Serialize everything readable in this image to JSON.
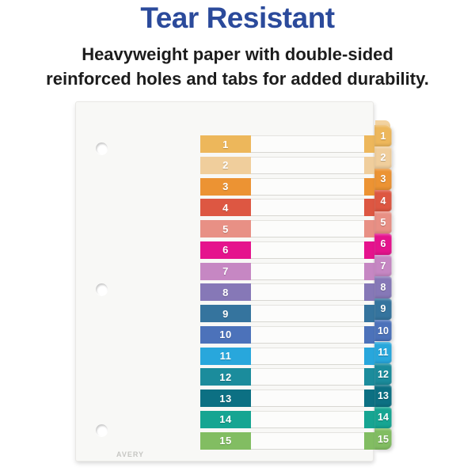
{
  "header": {
    "title": "Tear Resistant",
    "subtitle_line1": "Heavyweight paper with double-sided",
    "subtitle_line2": "reinforced holes and tabs for added durability.",
    "title_color": "#2B4A9B"
  },
  "product": {
    "brand": "AVERY",
    "tabs": [
      {
        "number": "1",
        "color": "#EDB75B"
      },
      {
        "number": "2",
        "color": "#F0CE9C"
      },
      {
        "number": "3",
        "color": "#EC9333"
      },
      {
        "number": "4",
        "color": "#DD5742"
      },
      {
        "number": "5",
        "color": "#E89085"
      },
      {
        "number": "6",
        "color": "#E5138D"
      },
      {
        "number": "7",
        "color": "#C687C3"
      },
      {
        "number": "8",
        "color": "#8678B7"
      },
      {
        "number": "9",
        "color": "#35749E"
      },
      {
        "number": "10",
        "color": "#4C72BA"
      },
      {
        "number": "11",
        "color": "#28A7DC"
      },
      {
        "number": "12",
        "color": "#1B8C9C"
      },
      {
        "number": "13",
        "color": "#0C7083"
      },
      {
        "number": "14",
        "color": "#16A592"
      },
      {
        "number": "15",
        "color": "#82BD62"
      }
    ]
  }
}
